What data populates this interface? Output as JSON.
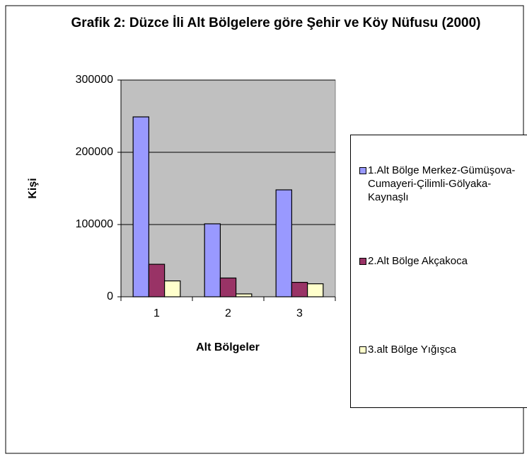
{
  "chart_data": {
    "type": "bar",
    "title": "Grafik 2: Düzce İli Alt Bölgelere  göre Şehir ve Köy Nüfusu (2000)",
    "x_label": "Alt Bölgeler",
    "y_label": "Kişi",
    "categories": [
      "1",
      "2",
      "3"
    ],
    "series": [
      {
        "name": "1.Alt Bölge Merkez-Gümüşova-Cumayeri-Çilimli-Gölyaka-Kaynaşlı",
        "color": "#9999ff",
        "values": [
          249000,
          101000,
          148000
        ]
      },
      {
        "name": "2.Alt Bölge Akçakoca",
        "color": "#993366",
        "values": [
          45000,
          26000,
          20000
        ]
      },
      {
        "name": "3.alt Bölge Yığışca",
        "color": "#ffffcc",
        "values": [
          22000,
          4000,
          18000
        ]
      }
    ],
    "ylim": [
      0,
      300000
    ],
    "yticks": [
      0,
      100000,
      200000,
      300000
    ],
    "grid": true,
    "legend": "right"
  }
}
